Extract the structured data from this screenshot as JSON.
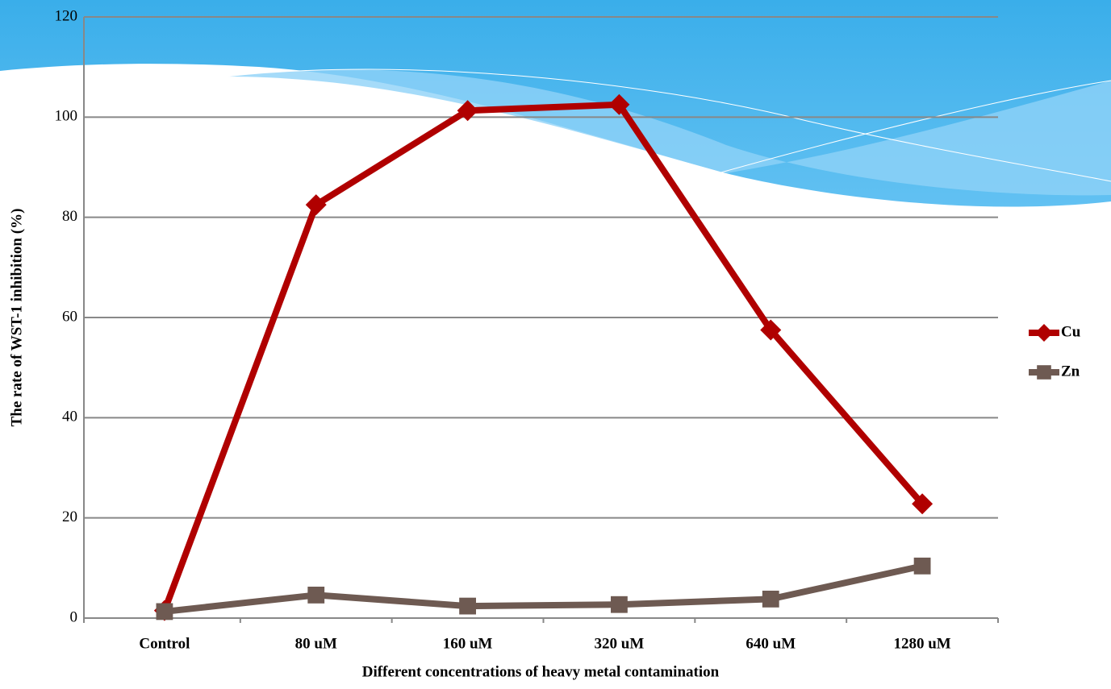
{
  "chart_data": {
    "type": "line",
    "x_label": "Different concentrations of heavy metal contamination",
    "y_label": "The rate of WST-1 inhibition (%)",
    "categories": [
      "Control",
      "80 uM",
      "160 uM",
      "320 uM",
      "640 uM",
      "1280 uM"
    ],
    "series": [
      {
        "name": "Cu",
        "color": "#b00000",
        "marker": "diamond",
        "values": [
          1.5,
          82.5,
          101.3,
          102.5,
          57.5,
          22.8
        ]
      },
      {
        "name": "Zn",
        "color": "#6e5a52",
        "marker": "square",
        "values": [
          1.3,
          4.6,
          2.4,
          2.7,
          3.8,
          10.4
        ]
      }
    ],
    "ylim": [
      0,
      120
    ],
    "yticks": [
      0,
      20,
      40,
      60,
      80,
      100,
      120
    ],
    "grid": true,
    "legend": "right"
  }
}
